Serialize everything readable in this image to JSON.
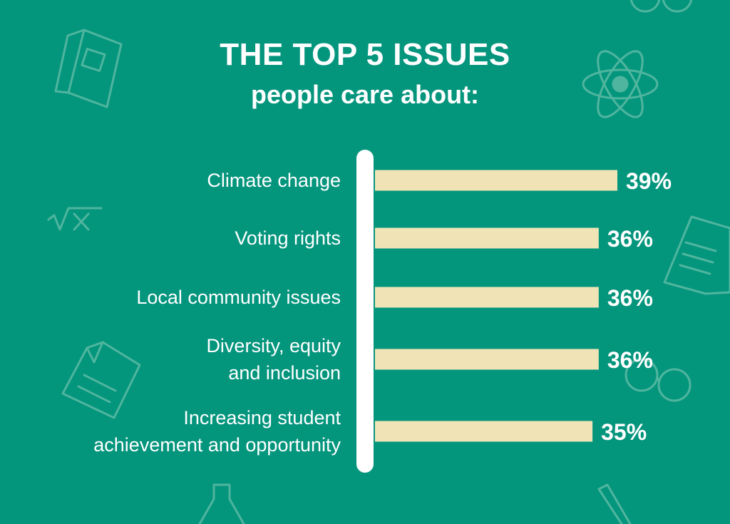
{
  "header": {
    "title": "THE TOP 5 ISSUES",
    "subtitle": "people care about:"
  },
  "colors": {
    "background": "#04957d",
    "bar": "#f0e4b6",
    "axis": "#ffffff",
    "text": "#ffffff",
    "decor": "#4fb59e"
  },
  "decor_icons": [
    "book-icon",
    "atom-icon",
    "square-root-icon",
    "document-icon",
    "glasses-icon",
    "flask-icon",
    "pen-icon"
  ],
  "chart_data": {
    "type": "bar",
    "orientation": "horizontal",
    "categories": [
      [
        "Climate change"
      ],
      [
        "Voting rights"
      ],
      [
        "Local community issues"
      ],
      [
        "Diversity, equity",
        "and inclusion"
      ],
      [
        "Increasing student",
        "achievement and opportunity"
      ]
    ],
    "values": [
      39,
      36,
      36,
      36,
      35
    ],
    "value_labels": [
      "39%",
      "36%",
      "36%",
      "36%",
      "35%"
    ],
    "unit": "%",
    "xlim": [
      0,
      39
    ],
    "grid": false,
    "legend": "none"
  }
}
